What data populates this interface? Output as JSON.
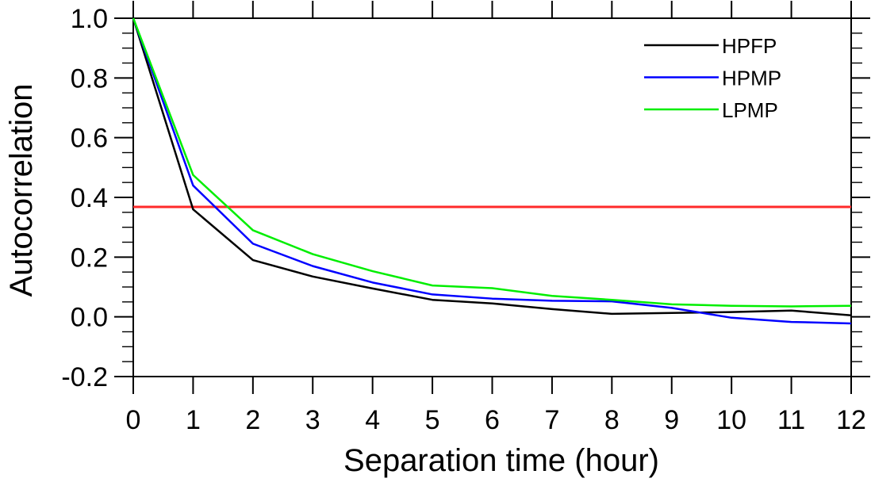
{
  "chart_data": {
    "type": "line",
    "title": "",
    "xlabel": "Separation time (hour)",
    "ylabel": "Autocorrelation",
    "xlim": [
      0,
      12
    ],
    "ylim": [
      -0.2,
      1.0
    ],
    "grid": false,
    "legend_position": "top-right-inside",
    "x_ticks": [
      0,
      1,
      2,
      3,
      4,
      5,
      6,
      7,
      8,
      9,
      10,
      11,
      12
    ],
    "x_tick_labels": [
      "0",
      "1",
      "2",
      "3",
      "4",
      "5",
      "6",
      "7",
      "8",
      "9",
      "10",
      "11",
      "12"
    ],
    "y_ticks": [
      -0.2,
      0.0,
      0.2,
      0.4,
      0.6,
      0.8,
      1.0
    ],
    "y_tick_labels": [
      "-0.2",
      "0.0",
      "0.2",
      "0.4",
      "0.6",
      "0.8",
      "1.0"
    ],
    "y_minor_tick_step": 0.05,
    "x": [
      0,
      1,
      2,
      3,
      4,
      5,
      6,
      7,
      8,
      9,
      10,
      11,
      12
    ],
    "series": [
      {
        "name": "HPFP",
        "color": "#000000",
        "values": [
          1.0,
          0.36,
          0.19,
          0.135,
          0.095,
          0.057,
          0.045,
          0.026,
          0.01,
          0.013,
          0.016,
          0.021,
          0.005
        ]
      },
      {
        "name": "HPMP",
        "color": "#0000ff",
        "values": [
          1.0,
          0.44,
          0.245,
          0.17,
          0.115,
          0.075,
          0.061,
          0.054,
          0.052,
          0.03,
          -0.003,
          -0.017,
          -0.022
        ]
      },
      {
        "name": "LPMP",
        "color": "#00ee00",
        "values": [
          1.0,
          0.475,
          0.29,
          0.21,
          0.153,
          0.105,
          0.096,
          0.07,
          0.057,
          0.042,
          0.037,
          0.035,
          0.037
        ]
      }
    ],
    "reference_line": {
      "value": 0.368,
      "color": "#ff2a2a"
    }
  }
}
